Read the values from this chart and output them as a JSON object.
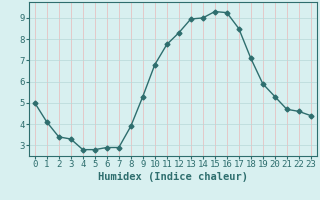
{
  "x": [
    0,
    1,
    2,
    3,
    4,
    5,
    6,
    7,
    8,
    9,
    10,
    11,
    12,
    13,
    14,
    15,
    16,
    17,
    18,
    19,
    20,
    21,
    22,
    23
  ],
  "y": [
    5.0,
    4.1,
    3.4,
    3.3,
    2.8,
    2.8,
    2.9,
    2.9,
    3.9,
    5.3,
    6.8,
    7.75,
    8.3,
    8.95,
    9.0,
    9.3,
    9.25,
    8.5,
    7.1,
    5.9,
    5.3,
    4.7,
    4.6,
    4.4
  ],
  "line_color": "#2e6e6e",
  "marker": "D",
  "marker_size": 2.5,
  "bg_color": "#d8f0f0",
  "grid_color_v": "#e8b8b8",
  "grid_color_h": "#b8d8d8",
  "xlabel": "Humidex (Indice chaleur)",
  "ylim": [
    2.5,
    9.75
  ],
  "xlim": [
    -0.5,
    23.5
  ],
  "yticks": [
    3,
    4,
    5,
    6,
    7,
    8,
    9
  ],
  "xticks": [
    0,
    1,
    2,
    3,
    4,
    5,
    6,
    7,
    8,
    9,
    10,
    11,
    12,
    13,
    14,
    15,
    16,
    17,
    18,
    19,
    20,
    21,
    22,
    23
  ],
  "spine_color": "#2e6e6e",
  "xlabel_fontsize": 7.5,
  "tick_fontsize": 6.5,
  "tick_color": "#2e6e6e"
}
